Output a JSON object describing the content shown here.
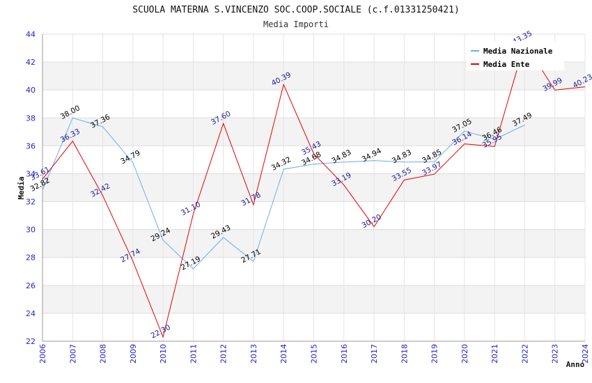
{
  "chart_data": {
    "type": "line",
    "title": "SCUOLA MATERNA S.VINCENZO SOC.COOP.SOCIALE (c.f.01331250421)",
    "subtitle": "Media Importi",
    "xlabel": "Anno",
    "ylabel": "Media",
    "ylim": [
      22,
      44
    ],
    "yticks": [
      22,
      24,
      26,
      28,
      30,
      32,
      34,
      36,
      38,
      40,
      42,
      44
    ],
    "x": [
      "2006",
      "2007",
      "2008",
      "2009",
      "2010",
      "2011",
      "2012",
      "2013",
      "2014",
      "2015",
      "2016",
      "2017",
      "2018",
      "2019",
      "2020",
      "2021",
      "2022",
      "2023",
      "2024"
    ],
    "grid": true,
    "legend_position": "top-right",
    "series": [
      {
        "name": "Media Nazionale",
        "color": "#6aaee6",
        "label_color": "#000000",
        "values": [
          32.82,
          38.0,
          37.36,
          34.79,
          29.24,
          27.19,
          29.43,
          27.71,
          34.32,
          34.68,
          34.83,
          34.94,
          34.83,
          34.85,
          37.05,
          36.46,
          37.49,
          null,
          null
        ],
        "labels": [
          "32.82",
          "38.00",
          "37.36",
          "34.79",
          "29.24",
          "27.19",
          "29.43",
          "27.71",
          "34.32",
          "34.68",
          "34.83",
          "34.94",
          "34.83",
          "34.85",
          "37.05",
          "36.46",
          "37.49",
          "",
          ""
        ]
      },
      {
        "name": "Media Ente",
        "color": "#e60000",
        "label_color": "#1a1a99",
        "values": [
          33.61,
          36.33,
          32.42,
          27.74,
          22.3,
          31.1,
          37.6,
          31.78,
          40.39,
          35.43,
          33.19,
          30.2,
          33.55,
          33.97,
          36.14,
          35.95,
          43.35,
          39.99,
          40.23
        ],
        "labels": [
          "33.61",
          "36.33",
          "32.42",
          "27.74",
          "22.30",
          "31.10",
          "37.60",
          "31.78",
          "40.39",
          "35.43",
          "33.19",
          "30.20",
          "33.55",
          "33.97",
          "36.14",
          "35.95",
          "43.35",
          "39.99",
          "40.23"
        ]
      }
    ]
  }
}
